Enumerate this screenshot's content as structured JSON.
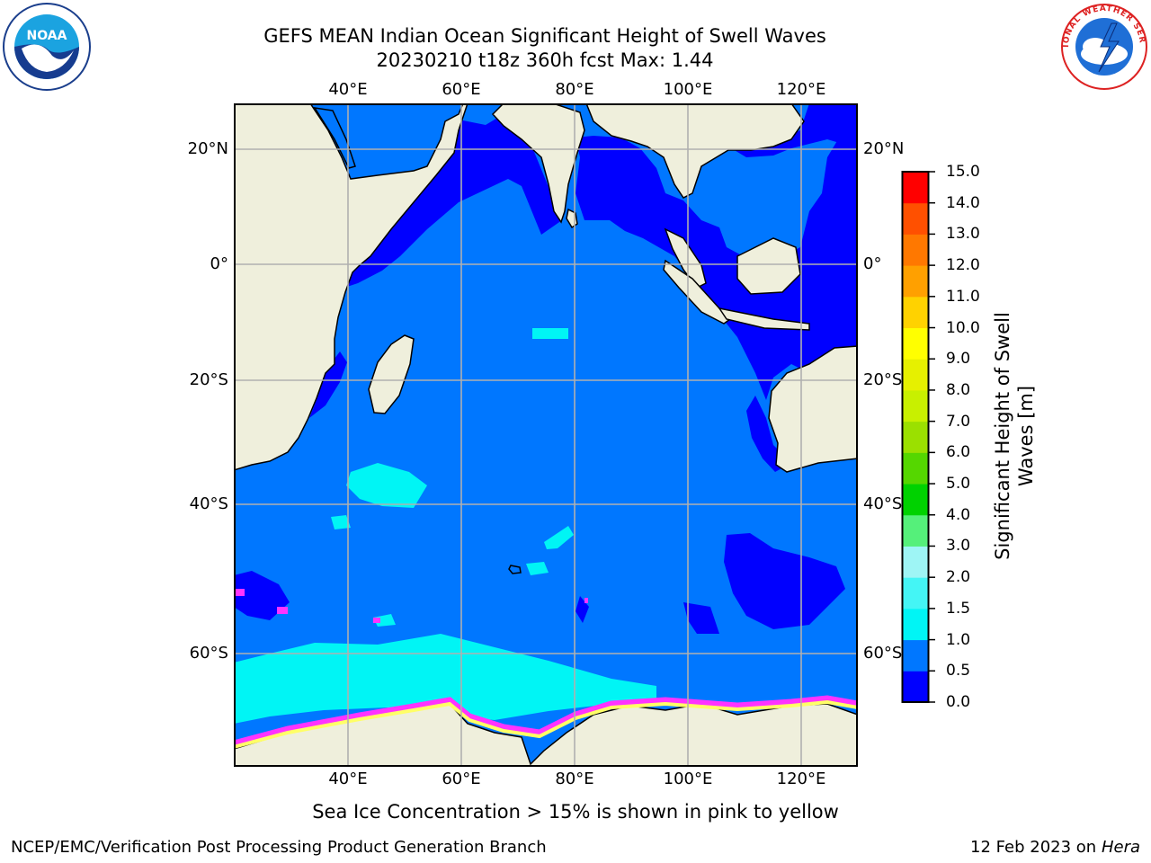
{
  "header": {
    "title_line1": "GEFS MEAN Indian Ocean Significant Height of Swell Waves",
    "title_line2": "20230210 t18z 360h fcst   Max: 1.44"
  },
  "logos": {
    "left": {
      "icon": "noaa-logo-icon",
      "text": "NOAA"
    },
    "right": {
      "icon": "nws-logo-icon",
      "text": "NATIONAL WEATHER SERVICE"
    }
  },
  "map": {
    "lon_ticks": [
      "40°E",
      "60°E",
      "80°E",
      "100°E",
      "120°E"
    ],
    "lat_ticks": [
      "20°N",
      "0°",
      "20°S",
      "40°S",
      "60°S"
    ],
    "colors": {
      "ocean_main": "#0077ff",
      "ocean_shallow": "#0000ff",
      "swell_cyan": "#00f5f5",
      "land": "#efefdc",
      "ice_pink": "#ff33ff",
      "ice_yellow": "#ffff66",
      "grid": "#b0b0b0"
    }
  },
  "colorbar": {
    "label": "Significant Height of Swell Waves [m]",
    "tick_labels": [
      "0.0",
      "0.5",
      "1.0",
      "1.5",
      "2.0",
      "3.0",
      "4.0",
      "5.0",
      "6.0",
      "7.0",
      "8.0",
      "9.0",
      "10.0",
      "11.0",
      "12.0",
      "13.0",
      "14.0",
      "15.0"
    ],
    "colors": [
      "#0000ff",
      "#0077ff",
      "#00f5f5",
      "#44f5f5",
      "#9ef5f5",
      "#55f07a",
      "#00d200",
      "#55d700",
      "#9be000",
      "#c8f000",
      "#e6f000",
      "#ffff00",
      "#ffd200",
      "#ffa000",
      "#ff7800",
      "#ff5000",
      "#ff0000"
    ]
  },
  "caption": "Sea Ice Concentration > 15% is shown in pink to yellow",
  "footer": {
    "left": "NCEP/EMC/Verification Post Processing Product Generation Branch",
    "date": "12 Feb 2023 on",
    "machine": "Hera"
  }
}
